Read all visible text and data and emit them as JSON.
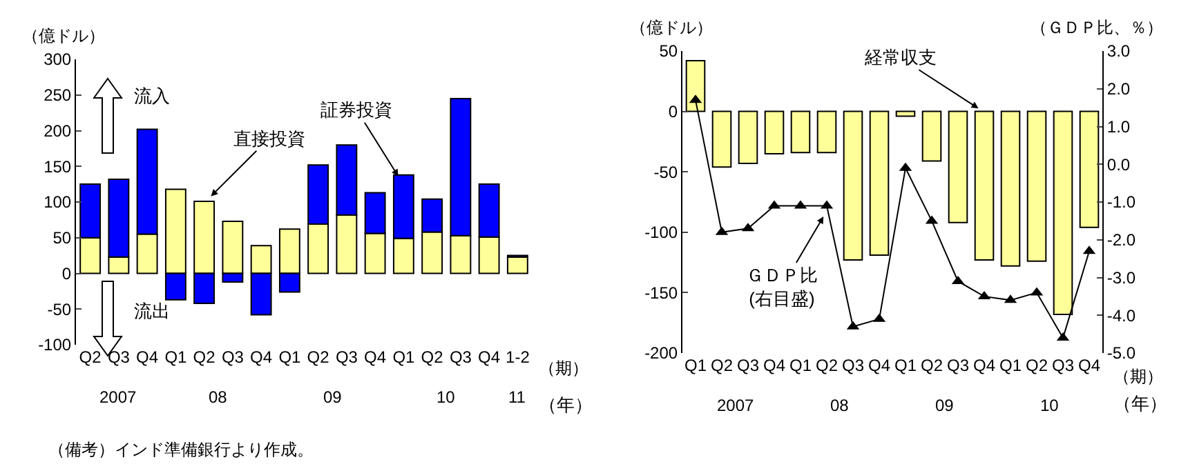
{
  "chart_data": [
    {
      "type": "bar",
      "stacked": true,
      "ylabel": "（億ドル）",
      "xlabel": "（期）",
      "categories": [
        "Q2",
        "Q3",
        "Q4",
        "Q1",
        "Q2",
        "Q3",
        "Q4",
        "Q1",
        "Q2",
        "Q3",
        "Q4",
        "Q1",
        "Q2",
        "Q3",
        "Q4",
        "1-2"
      ],
      "series": [
        {
          "name": "直接投資",
          "color": "#ffff99",
          "values": [
            50,
            23,
            55,
            118,
            101,
            73,
            39,
            62,
            69,
            82,
            56,
            49,
            58,
            53,
            51,
            23
          ]
        },
        {
          "name": "証券投資",
          "color": "#0000ff",
          "values": [
            75,
            109,
            147,
            -37,
            -42,
            -12,
            -58,
            -26,
            83,
            98,
            57,
            89,
            46,
            192,
            74,
            2
          ]
        }
      ],
      "ylim": [
        -100,
        300
      ],
      "yticks": [
        -100,
        -50,
        0,
        50,
        100,
        150,
        200,
        250,
        300
      ],
      "grid": false,
      "legend": false,
      "annotations": [
        "2007",
        "08",
        "09",
        "10",
        "11",
        "流入",
        "流出",
        "（年）",
        "（備考）インド準備銀行より作成。"
      ]
    },
    {
      "type": "bar",
      "ylabel": "（億ドル）",
      "y2label": "（ＧＤＰ比、％）",
      "xlabel": "（期）",
      "categories": [
        "Q1",
        "Q2",
        "Q3",
        "Q4",
        "Q1",
        "Q2",
        "Q3",
        "Q4",
        "Q1",
        "Q2",
        "Q3",
        "Q4",
        "Q1",
        "Q2",
        "Q3",
        "Q4"
      ],
      "series": [
        {
          "name": "経常収支",
          "color": "#ffff99",
          "values": [
            42,
            -46,
            -43,
            -35,
            -34,
            -34,
            -123,
            -119,
            -4,
            -41,
            -92,
            -123,
            -128,
            -124,
            -168,
            -96
          ]
        },
        {
          "name": "ＧＤＰ比\n(右目盛)",
          "type": "line",
          "axis": "y2",
          "color": "#000000",
          "marker": "triangle",
          "values": [
            1.7,
            -1.8,
            -1.7,
            -1.1,
            -1.1,
            -1.1,
            -4.3,
            -4.1,
            -0.1,
            -1.5,
            -3.1,
            -3.5,
            -3.6,
            -3.4,
            -4.6,
            -2.3
          ]
        }
      ],
      "ylim": [
        -200,
        50
      ],
      "yticks": [
        -200,
        -150,
        -100,
        -50,
        0,
        50
      ],
      "y2lim": [
        -5,
        3
      ],
      "y2ticks": [
        {
          "value": -5,
          "label": "-5.0"
        },
        {
          "value": -4,
          "label": "-4.0"
        },
        {
          "value": -3,
          "label": "-3.0"
        },
        {
          "value": -2,
          "label": "-2.0"
        },
        {
          "value": -1,
          "label": "-1.0"
        },
        {
          "value": 0,
          "label": "0.0"
        },
        {
          "value": 1,
          "label": "1.0"
        },
        {
          "value": 2,
          "label": "2.0"
        },
        {
          "value": 3,
          "label": "3.0"
        }
      ],
      "grid": false,
      "legend": false,
      "annotations": [
        "2007",
        "08",
        "09",
        "10",
        "（年）"
      ]
    }
  ]
}
